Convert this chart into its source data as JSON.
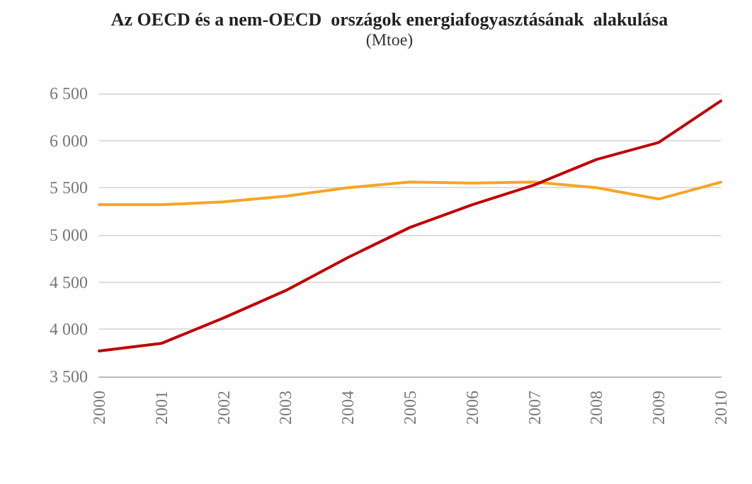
{
  "chart_data": {
    "type": "line",
    "title": "Az OECD és a nem-OECD  országok energiafogyasztásának  alakulása",
    "subtitle": "(Mtoe)",
    "categories": [
      "2000",
      "2001",
      "2002",
      "2003",
      "2004",
      "2005",
      "2006",
      "2007",
      "2008",
      "2009",
      "2010"
    ],
    "series": [
      {
        "color": "#f5a623",
        "values": [
          5320,
          5320,
          5350,
          5410,
          5500,
          5560,
          5550,
          5560,
          5500,
          5380,
          5560
        ]
      },
      {
        "color": "#c00000",
        "values": [
          3770,
          3850,
          4120,
          4410,
          4760,
          5080,
          5320,
          5530,
          5800,
          5980,
          6420
        ]
      }
    ],
    "ylim": [
      3500,
      6500
    ],
    "yticks": [
      {
        "value": 3500,
        "label": "3 500"
      },
      {
        "value": 4000,
        "label": "4 000"
      },
      {
        "value": 4500,
        "label": "4 500"
      },
      {
        "value": 5000,
        "label": "5 000"
      },
      {
        "value": 5500,
        "label": "5 500"
      },
      {
        "value": 6000,
        "label": "6 000"
      },
      {
        "value": 6500,
        "label": "6 500"
      }
    ],
    "grid": "y",
    "marker": "none",
    "line_style": "solid"
  }
}
